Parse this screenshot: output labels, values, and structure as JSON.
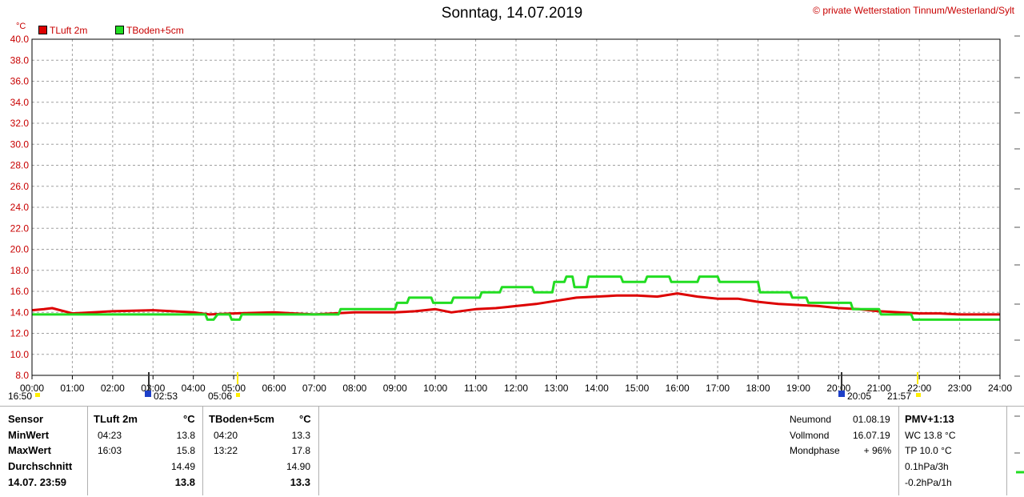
{
  "title": "Sonntag, 14.07.2019",
  "copyright": "© private Wetterstation Tinnum/Westerland/Sylt",
  "colors": {
    "tluft": "#dd0000",
    "tboden": "#22dd22",
    "grid": "#a0a0a0",
    "labels": "#c80000"
  },
  "legend": [
    {
      "name": "TLuft 2m",
      "color": "#dd0000"
    },
    {
      "name": "TBoden+5cm",
      "color": "#22dd22"
    }
  ],
  "markers": {
    "sunrise": "16:50",
    "t1": "02:53",
    "t2": "05:06",
    "t3": "20:05",
    "t4": "21:57"
  },
  "stats": {
    "headers": {
      "sensor": "Sensor",
      "tluft": "TLuft 2m",
      "tboden": "TBoden+5cm",
      "unit": "°C"
    },
    "rows": [
      {
        "label": "MinWert",
        "tluft_time": "04:23",
        "tluft_val": "13.8",
        "tboden_time": "04:20",
        "tboden_val": "13.3"
      },
      {
        "label": "MaxWert",
        "tluft_time": "16:03",
        "tluft_val": "15.8",
        "tboden_time": "13:22",
        "tboden_val": "17.8"
      },
      {
        "label": "Durchschnitt",
        "tluft_time": "",
        "tluft_val": "14.49",
        "tboden_time": "",
        "tboden_val": "14.90"
      },
      {
        "label": "14.07. 23:59",
        "tluft_time": "",
        "tluft_val": "13.8",
        "tboden_time": "",
        "tboden_val": "13.3"
      }
    ]
  },
  "moon": [
    {
      "label": "Neumond",
      "value": "01.08.19"
    },
    {
      "label": "Vollmond",
      "value": "16.07.19"
    },
    {
      "label": "Mondphase",
      "value": "+ 96%"
    }
  ],
  "pmv": {
    "title": "PMV+1:13",
    "lines": [
      "WC 13.8 °C",
      "TP 10.0 °C",
      "0.1hPa/3h",
      "-0.2hPa/1h"
    ]
  },
  "chart_data": {
    "type": "line",
    "ylabel": "°C",
    "ylim": [
      8,
      40
    ],
    "yticks": [
      "8.0",
      "10.0",
      "12.0",
      "14.0",
      "16.0",
      "18.0",
      "20.0",
      "22.0",
      "24.0",
      "26.0",
      "28.0",
      "30.0",
      "32.0",
      "34.0",
      "36.0",
      "38.0",
      "40.0"
    ],
    "xlim": [
      0,
      24
    ],
    "xticks": [
      "00:00",
      "01:00",
      "02:00",
      "03:00",
      "04:00",
      "05:00",
      "06:00",
      "07:00",
      "08:00",
      "09:00",
      "10:00",
      "11:00",
      "12:00",
      "13:00",
      "14:00",
      "15:00",
      "16:00",
      "17:00",
      "18:00",
      "19:00",
      "20:00",
      "21:00",
      "22:00",
      "23:00",
      "24:00"
    ],
    "grid": true,
    "series": [
      {
        "name": "TLuft 2m",
        "color": "#dd0000",
        "x": [
          0,
          0.3,
          0.5,
          1.0,
          2.0,
          3.0,
          4.0,
          4.4,
          5.0,
          6.0,
          7.0,
          8.0,
          9.0,
          9.5,
          10.0,
          10.4,
          11.0,
          11.5,
          12.0,
          12.5,
          13.0,
          13.5,
          14.0,
          14.5,
          15.0,
          15.5,
          16.0,
          16.5,
          17.0,
          17.5,
          18.0,
          18.5,
          19.0,
          19.5,
          20.0,
          20.5,
          21.0,
          21.5,
          22.0,
          22.5,
          23.0,
          24.0
        ],
        "values": [
          14.2,
          14.3,
          14.4,
          13.9,
          14.1,
          14.2,
          14.0,
          13.8,
          13.9,
          14.0,
          13.8,
          14.0,
          14.0,
          14.1,
          14.3,
          14.0,
          14.3,
          14.4,
          14.6,
          14.8,
          15.1,
          15.4,
          15.5,
          15.6,
          15.6,
          15.5,
          15.8,
          15.5,
          15.3,
          15.3,
          15.0,
          14.8,
          14.7,
          14.6,
          14.4,
          14.3,
          14.1,
          14.0,
          13.9,
          13.9,
          13.8,
          13.8
        ]
      },
      {
        "name": "TBoden+5cm",
        "color": "#22dd22",
        "x": [
          0,
          4.3,
          4.35,
          4.5,
          4.6,
          4.9,
          4.95,
          5.15,
          5.2,
          7.6,
          7.65,
          9.0,
          9.05,
          9.3,
          9.35,
          9.9,
          9.95,
          10.4,
          10.45,
          11.1,
          11.15,
          11.6,
          11.65,
          12.4,
          12.45,
          12.9,
          12.95,
          13.2,
          13.25,
          13.4,
          13.45,
          13.75,
          13.8,
          14.6,
          14.65,
          15.2,
          15.25,
          15.8,
          15.85,
          16.5,
          16.55,
          17.0,
          17.05,
          18.0,
          18.05,
          18.8,
          18.85,
          19.2,
          19.25,
          20.3,
          20.35,
          21.0,
          21.05,
          21.8,
          21.85,
          22.5,
          22.55,
          24.0
        ],
        "values": [
          13.8,
          13.8,
          13.3,
          13.3,
          13.8,
          13.8,
          13.3,
          13.3,
          13.8,
          13.8,
          14.3,
          14.3,
          14.9,
          14.9,
          15.4,
          15.4,
          14.9,
          14.9,
          15.4,
          15.4,
          15.9,
          15.9,
          16.4,
          16.4,
          15.9,
          15.9,
          16.9,
          16.9,
          17.4,
          17.4,
          16.4,
          16.4,
          17.4,
          17.4,
          16.9,
          16.9,
          17.4,
          17.4,
          16.9,
          16.9,
          17.4,
          17.4,
          16.9,
          16.9,
          15.9,
          15.9,
          15.4,
          15.4,
          14.9,
          14.9,
          14.3,
          14.3,
          13.8,
          13.8,
          13.3,
          13.3,
          13.3,
          13.3
        ]
      }
    ]
  }
}
